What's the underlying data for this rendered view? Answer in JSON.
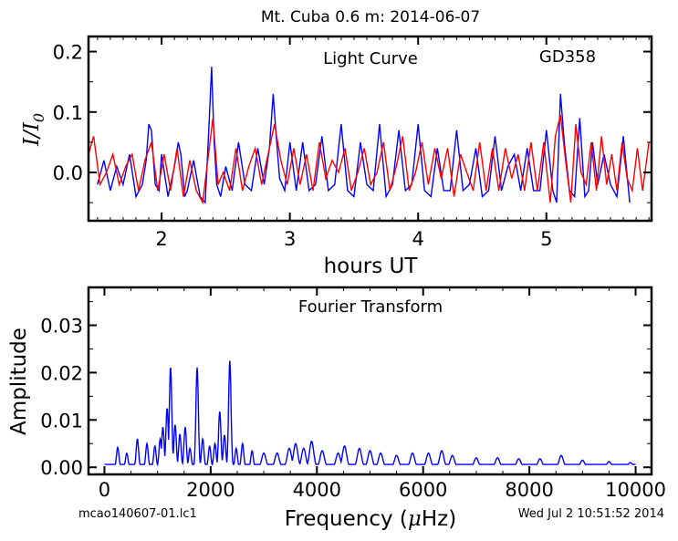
{
  "figure": {
    "title": "Mt. Cuba 0.6 m:  2014-06-07",
    "footer_left": "mcao140607-01.lc1",
    "footer_right": "Wed Jul  2 10:51:52 2014"
  },
  "chart_data": [
    {
      "type": "line",
      "title": "",
      "annotations": [
        "Light Curve",
        "GD358"
      ],
      "xlabel": "hours UT",
      "ylabel_main": "I/I",
      "ylabel_sub": "0",
      "xlim": [
        1.43,
        5.82
      ],
      "ylim": [
        -0.08,
        0.225
      ],
      "xticks": [
        2,
        3,
        4,
        5
      ],
      "xtick_labels": [
        "2",
        "3",
        "4",
        "5"
      ],
      "yticks": [
        0.0,
        0.1,
        0.2
      ],
      "ytick_labels": [
        "0.0",
        "0.1",
        "0.2"
      ],
      "grid": false,
      "series": [
        {
          "color": "#0000ff",
          "x": [
            1.5,
            1.55,
            1.6,
            1.65,
            1.7,
            1.75,
            1.8,
            1.85,
            1.88,
            1.9,
            1.92,
            1.95,
            1.98,
            2.0,
            2.05,
            2.1,
            2.13,
            2.15,
            2.18,
            2.2,
            2.25,
            2.3,
            2.34,
            2.37,
            2.39,
            2.41,
            2.43,
            2.46,
            2.5,
            2.55,
            2.6,
            2.65,
            2.7,
            2.75,
            2.8,
            2.84,
            2.87,
            2.89,
            2.92,
            2.96,
            3.0,
            3.05,
            3.1,
            3.15,
            3.2,
            3.25,
            3.3,
            3.35,
            3.4,
            3.45,
            3.5,
            3.55,
            3.6,
            3.65,
            3.7,
            3.75,
            3.8,
            3.85,
            3.9,
            3.95,
            4.0,
            4.05,
            4.1,
            4.15,
            4.2,
            4.25,
            4.3,
            4.35,
            4.4,
            4.45,
            4.5,
            4.55,
            4.6,
            4.65,
            4.7,
            4.75,
            4.8,
            4.85,
            4.9,
            4.95,
            5.0,
            5.05,
            5.08,
            5.11,
            5.14,
            5.18,
            5.22,
            5.26,
            5.3,
            5.33,
            5.36,
            5.4,
            5.45,
            5.5,
            5.55,
            5.6,
            5.65
          ],
          "y": [
            -0.02,
            0.02,
            -0.03,
            0.01,
            -0.02,
            0.03,
            -0.04,
            -0.02,
            0.02,
            0.08,
            0.07,
            -0.02,
            -0.03,
            0.03,
            -0.04,
            0.01,
            0.05,
            0.03,
            -0.04,
            -0.03,
            0.02,
            -0.04,
            -0.05,
            0.08,
            0.175,
            0.05,
            -0.02,
            -0.04,
            0.01,
            -0.03,
            0.05,
            -0.02,
            -0.03,
            0.04,
            -0.02,
            0.04,
            0.13,
            0.07,
            -0.01,
            -0.03,
            0.05,
            -0.03,
            0.05,
            -0.03,
            -0.02,
            0.06,
            -0.03,
            -0.02,
            0.08,
            -0.03,
            -0.04,
            0.05,
            -0.02,
            -0.03,
            0.08,
            -0.04,
            -0.02,
            0.07,
            -0.03,
            -0.02,
            0.08,
            -0.03,
            -0.04,
            0.04,
            -0.03,
            -0.03,
            0.07,
            -0.03,
            -0.02,
            0.04,
            -0.04,
            -0.03,
            0.06,
            -0.03,
            0.01,
            0.03,
            -0.03,
            0.04,
            -0.03,
            -0.03,
            0.07,
            -0.03,
            -0.05,
            0.13,
            0.05,
            -0.03,
            -0.04,
            0.09,
            -0.04,
            -0.03,
            0.05,
            -0.02,
            0.03,
            -0.02,
            -0.04,
            0.06,
            -0.05
          ]
        },
        {
          "color": "#ff0000",
          "x": [
            1.43,
            1.47,
            1.52,
            1.57,
            1.62,
            1.67,
            1.72,
            1.77,
            1.82,
            1.87,
            1.92,
            1.97,
            2.02,
            2.07,
            2.12,
            2.17,
            2.22,
            2.27,
            2.32,
            2.36,
            2.4,
            2.44,
            2.48,
            2.53,
            2.58,
            2.63,
            2.68,
            2.73,
            2.78,
            2.83,
            2.88,
            2.93,
            2.98,
            3.03,
            3.08,
            3.13,
            3.18,
            3.23,
            3.28,
            3.33,
            3.38,
            3.43,
            3.48,
            3.53,
            3.58,
            3.63,
            3.68,
            3.73,
            3.78,
            3.83,
            3.88,
            3.93,
            3.98,
            4.03,
            4.08,
            4.13,
            4.18,
            4.23,
            4.28,
            4.33,
            4.38,
            4.43,
            4.48,
            4.53,
            4.58,
            4.63,
            4.68,
            4.73,
            4.78,
            4.83,
            4.88,
            4.93,
            4.98,
            5.03,
            5.07,
            5.11,
            5.15,
            5.19,
            5.23,
            5.27,
            5.31,
            5.35,
            5.39,
            5.43,
            5.47,
            5.51,
            5.55,
            5.59,
            5.63,
            5.67,
            5.71,
            5.75,
            5.8
          ],
          "y": [
            0.03,
            0.06,
            -0.02,
            0.0,
            0.03,
            -0.02,
            0.01,
            0.03,
            -0.03,
            0.02,
            0.05,
            -0.03,
            0.03,
            -0.03,
            0.04,
            -0.04,
            0.02,
            -0.03,
            -0.05,
            0.02,
            0.09,
            -0.02,
            0.0,
            -0.03,
            0.04,
            -0.03,
            0.01,
            0.04,
            -0.02,
            0.03,
            0.08,
            0.02,
            -0.02,
            0.04,
            -0.02,
            0.03,
            -0.03,
            0.05,
            -0.01,
            0.02,
            0.0,
            0.04,
            -0.03,
            0.0,
            0.04,
            -0.02,
            0.0,
            0.05,
            -0.03,
            0.01,
            0.06,
            -0.03,
            0.0,
            0.05,
            -0.02,
            0.04,
            -0.01,
            0.04,
            -0.04,
            0.03,
            0.0,
            -0.03,
            0.05,
            -0.03,
            0.04,
            -0.03,
            0.04,
            -0.01,
            0.03,
            -0.03,
            0.05,
            -0.03,
            0.05,
            -0.05,
            0.06,
            0.095,
            0.02,
            -0.05,
            0.08,
            0.0,
            -0.02,
            0.05,
            -0.03,
            0.06,
            -0.02,
            0.03,
            -0.03,
            0.05,
            -0.01,
            -0.03,
            0.04,
            -0.03,
            0.05
          ]
        }
      ]
    },
    {
      "type": "line",
      "title": "",
      "annotations": [
        "Fourier Transform"
      ],
      "xlabel": "Frequency (",
      "xlabel_mu": "μ",
      "xlabel_end": "Hz)",
      "ylabel": "Amplitude",
      "xlim": [
        -300,
        10300
      ],
      "ylim": [
        -0.0015,
        0.038
      ],
      "xticks": [
        0,
        2000,
        4000,
        6000,
        8000,
        10000
      ],
      "xtick_labels": [
        "0",
        "2000",
        "4000",
        "6000",
        "8000",
        "10000"
      ],
      "yticks": [
        0.0,
        0.01,
        0.02,
        0.03
      ],
      "ytick_labels": [
        "0.00",
        "0.01",
        "0.02",
        "0.03"
      ],
      "grid": false,
      "peaks": [
        {
          "f": 250,
          "a": 0.0042
        },
        {
          "f": 420,
          "a": 0.003
        },
        {
          "f": 620,
          "a": 0.006
        },
        {
          "f": 800,
          "a": 0.005
        },
        {
          "f": 950,
          "a": 0.0045
        },
        {
          "f": 1050,
          "a": 0.006
        },
        {
          "f": 1100,
          "a": 0.0085
        },
        {
          "f": 1180,
          "a": 0.0125
        },
        {
          "f": 1245,
          "a": 0.0212
        },
        {
          "f": 1330,
          "a": 0.009
        },
        {
          "f": 1420,
          "a": 0.007
        },
        {
          "f": 1520,
          "a": 0.0085
        },
        {
          "f": 1610,
          "a": 0.004
        },
        {
          "f": 1745,
          "a": 0.0211
        },
        {
          "f": 1850,
          "a": 0.006
        },
        {
          "f": 1980,
          "a": 0.0045
        },
        {
          "f": 2080,
          "a": 0.005
        },
        {
          "f": 2170,
          "a": 0.0118
        },
        {
          "f": 2260,
          "a": 0.0068
        },
        {
          "f": 2360,
          "a": 0.0225
        },
        {
          "f": 2480,
          "a": 0.004
        },
        {
          "f": 2600,
          "a": 0.005
        },
        {
          "f": 2780,
          "a": 0.0035
        },
        {
          "f": 3000,
          "a": 0.003
        },
        {
          "f": 3250,
          "a": 0.003
        },
        {
          "f": 3480,
          "a": 0.004
        },
        {
          "f": 3600,
          "a": 0.005
        },
        {
          "f": 3750,
          "a": 0.004
        },
        {
          "f": 3900,
          "a": 0.0055
        },
        {
          "f": 4100,
          "a": 0.0035
        },
        {
          "f": 4400,
          "a": 0.003
        },
        {
          "f": 4520,
          "a": 0.0045
        },
        {
          "f": 4800,
          "a": 0.004
        },
        {
          "f": 5000,
          "a": 0.0035
        },
        {
          "f": 5200,
          "a": 0.003
        },
        {
          "f": 5500,
          "a": 0.0025
        },
        {
          "f": 5800,
          "a": 0.003
        },
        {
          "f": 6100,
          "a": 0.003
        },
        {
          "f": 6350,
          "a": 0.0035
        },
        {
          "f": 6550,
          "a": 0.0025
        },
        {
          "f": 7000,
          "a": 0.002
        },
        {
          "f": 7400,
          "a": 0.002
        },
        {
          "f": 7800,
          "a": 0.0018
        },
        {
          "f": 8200,
          "a": 0.0018
        },
        {
          "f": 8600,
          "a": 0.0025
        },
        {
          "f": 9000,
          "a": 0.0015
        },
        {
          "f": 9500,
          "a": 0.0012
        },
        {
          "f": 9900,
          "a": 0.001
        }
      ]
    }
  ]
}
